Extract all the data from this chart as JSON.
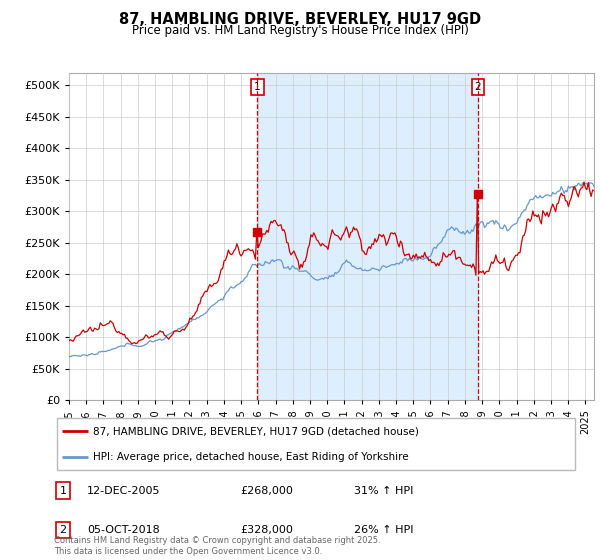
{
  "title": "87, HAMBLING DRIVE, BEVERLEY, HU17 9GD",
  "subtitle": "Price paid vs. HM Land Registry's House Price Index (HPI)",
  "ylim": [
    0,
    520000
  ],
  "yticks": [
    0,
    50000,
    100000,
    150000,
    200000,
    250000,
    300000,
    350000,
    400000,
    450000,
    500000
  ],
  "xlim_start": 1995.0,
  "xlim_end": 2025.5,
  "xticks": [
    1995,
    1996,
    1997,
    1998,
    1999,
    2000,
    2001,
    2002,
    2003,
    2004,
    2005,
    2006,
    2007,
    2008,
    2009,
    2010,
    2011,
    2012,
    2013,
    2014,
    2015,
    2016,
    2017,
    2018,
    2019,
    2020,
    2021,
    2022,
    2023,
    2024,
    2025
  ],
  "hpi_color": "#6699cc",
  "price_color": "#cc0000",
  "shade_color": "#ddeeff",
  "marker1_date": 2005.95,
  "marker1_label": "1",
  "marker1_price": 268000,
  "marker2_date": 2018.76,
  "marker2_label": "2",
  "marker2_price": 328000,
  "legend_line1": "87, HAMBLING DRIVE, BEVERLEY, HU17 9GD (detached house)",
  "legend_line2": "HPI: Average price, detached house, East Riding of Yorkshire",
  "table_row1_label": "1",
  "table_row1_date": "12-DEC-2005",
  "table_row1_price": "£268,000",
  "table_row1_hpi": "31% ↑ HPI",
  "table_row2_label": "2",
  "table_row2_date": "05-OCT-2018",
  "table_row2_price": "£328,000",
  "table_row2_hpi": "26% ↑ HPI",
  "footer": "Contains HM Land Registry data © Crown copyright and database right 2025.\nThis data is licensed under the Open Government Licence v3.0.",
  "background_color": "#ffffff",
  "grid_color": "#cccccc"
}
